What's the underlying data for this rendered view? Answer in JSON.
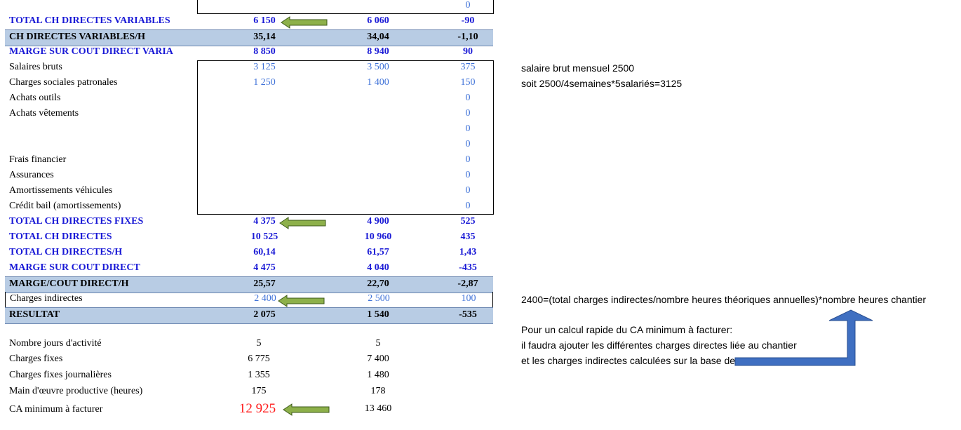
{
  "rows": [
    {
      "label": "",
      "v1": "",
      "v2": "",
      "v3": "0"
    },
    {
      "label": "TOTAL CH DIRECTES VARIABLES",
      "v1": "6 150",
      "v2": "6 060",
      "v3": "-90"
    },
    {
      "label": "CH DIRECTES VARIABLES/H",
      "v1": "35,14",
      "v2": "34,04",
      "v3": "-1,10"
    },
    {
      "label": "MARGE SUR COUT DIRECT VARIA",
      "v1": "8 850",
      "v2": "8 940",
      "v3": "90"
    },
    {
      "label": "Salaires bruts",
      "v1": "3 125",
      "v2": "3 500",
      "v3": "375"
    },
    {
      "label": "Charges sociales patronales",
      "v1": "1 250",
      "v2": "1 400",
      "v3": "150"
    },
    {
      "label": "Achats outils",
      "v1": "",
      "v2": "",
      "v3": "0"
    },
    {
      "label": "Achats vêtements",
      "v1": "",
      "v2": "",
      "v3": "0"
    },
    {
      "label": "",
      "v1": "",
      "v2": "",
      "v3": "0"
    },
    {
      "label": "",
      "v1": "",
      "v2": "",
      "v3": "0"
    },
    {
      "label": "Frais financier",
      "v1": "",
      "v2": "",
      "v3": "0"
    },
    {
      "label": "Assurances",
      "v1": "",
      "v2": "",
      "v3": "0"
    },
    {
      "label": "Amortissements véhicules",
      "v1": "",
      "v2": "",
      "v3": "0"
    },
    {
      "label": "Crédit bail (amortissements)",
      "v1": "",
      "v2": "",
      "v3": "0"
    },
    {
      "label": "TOTAL CH DIRECTES FIXES",
      "v1": "4 375",
      "v2": "4 900",
      "v3": "525"
    },
    {
      "label": "TOTAL CH DIRECTES",
      "v1": "10 525",
      "v2": "10 960",
      "v3": "435"
    },
    {
      "label": "TOTAL CH DIRECTES/H",
      "v1": "60,14",
      "v2": "61,57",
      "v3": "1,43"
    },
    {
      "label": "MARGE SUR COUT DIRECT",
      "v1": "4 475",
      "v2": "4 040",
      "v3": "-435"
    },
    {
      "label": "MARGE/COUT DIRECT/H",
      "v1": "25,57",
      "v2": "22,70",
      "v3": "-2,87"
    },
    {
      "label": "Charges indirectes",
      "v1": "2 400",
      "v2": "2 500",
      "v3": "100"
    },
    {
      "label": "RESULTAT",
      "v1": "2 075",
      "v2": "1 540",
      "v3": "-535"
    }
  ],
  "summary": [
    {
      "label": "Nombre jours d'activité",
      "v1": "5",
      "v2": "5"
    },
    {
      "label": "Charges fixes",
      "v1": "6 775",
      "v2": "7 400"
    },
    {
      "label": "Charges fixes journalières",
      "v1": "1 355",
      "v2": "1 480"
    },
    {
      "label": "Main d'œuvre productive (heures)",
      "v1": "175",
      "v2": "178"
    },
    {
      "label": "CA minimum à facturer",
      "v1": "12 925",
      "v2": "13 460"
    }
  ],
  "notes": {
    "salary_1": "salaire brut mensuel 2500",
    "salary_2": "soit 2500/4semaines*5salariés=3125",
    "indirect": "2400=(total charges indirectes/nombre heures théoriques annuelles)*nombre heures chantier",
    "calc_1": "Pour un calcul rapide du CA minimum à facturer:",
    "calc_2": "il faudra ajouter les différentes charges directes liée au chantier",
    "calc_3": "et les charges indirectes calculées sur la base de"
  },
  "colors": {
    "total_blue": "#1a1ad6",
    "value_blue": "#3f72d8",
    "band": "#b8cce4",
    "arrow_green": "#8db04a",
    "arrow_blue": "#3f6fc1",
    "highlight_red": "#ff1a1a"
  }
}
